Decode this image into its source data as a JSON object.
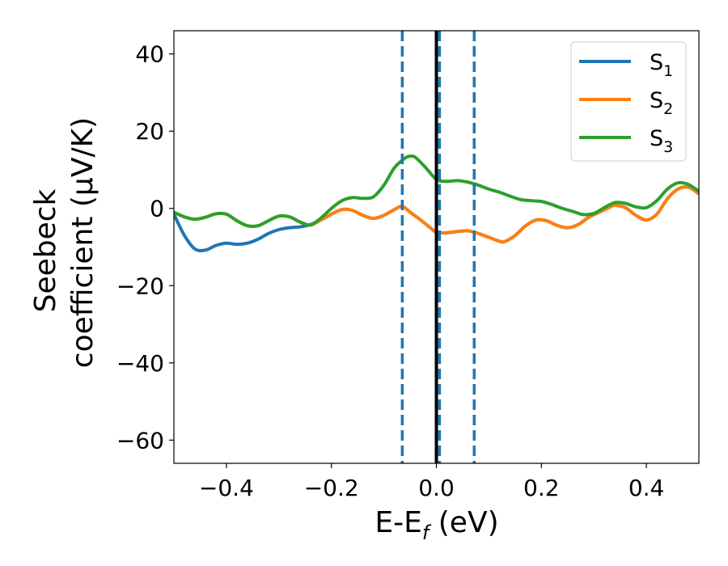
{
  "chart_data": {
    "type": "line",
    "xlabel": "E-E",
    "xlabel_sub": "f",
    "xlabel_unit": " (eV)",
    "ylabel_line1": "Seebeck",
    "ylabel_line2": "coefficient  (μV/K)",
    "xlim": [
      -0.5,
      0.5
    ],
    "ylim": [
      -66,
      46
    ],
    "xticks": [
      -0.4,
      -0.2,
      0.0,
      0.2,
      0.4
    ],
    "xtick_labels": [
      "−0.4",
      "−0.2",
      "0.0",
      "0.2",
      "0.4"
    ],
    "yticks": [
      40,
      20,
      0,
      -20,
      -40,
      -60
    ],
    "ytick_labels": [
      "40",
      "20",
      "0",
      "−20",
      "−40",
      "−60"
    ],
    "legend_position": "top-right",
    "grid": false,
    "series": [
      {
        "name": "S",
        "name_sub": "1",
        "color": "#1f77b4",
        "points": [
          [
            -0.5,
            -1.5
          ],
          [
            -0.48,
            -7
          ],
          [
            -0.46,
            -10.5
          ],
          [
            -0.44,
            -10.8
          ],
          [
            -0.42,
            -9.6
          ],
          [
            -0.4,
            -9.0
          ],
          [
            -0.38,
            -9.3
          ],
          [
            -0.36,
            -9.0
          ],
          [
            -0.34,
            -8.0
          ],
          [
            -0.32,
            -6.5
          ],
          [
            -0.3,
            -5.5
          ],
          [
            -0.28,
            -5.0
          ],
          [
            -0.26,
            -4.8
          ],
          [
            -0.24,
            -4.2
          ],
          [
            -0.22,
            -3.0
          ],
          [
            -0.2,
            -1.5
          ],
          [
            -0.18,
            -0.3
          ],
          [
            -0.16,
            -0.5
          ],
          [
            -0.14,
            -1.8
          ],
          [
            -0.12,
            -2.6
          ],
          [
            -0.1,
            -1.8
          ],
          [
            -0.08,
            -0.3
          ],
          [
            -0.065,
            0.5
          ],
          [
            -0.05,
            -1.0
          ],
          [
            -0.03,
            -3.0
          ],
          [
            -0.01,
            -5.2
          ],
          [
            0.0,
            -6.2
          ],
          [
            0.02,
            -6.3
          ],
          [
            0.04,
            -6.0
          ],
          [
            0.06,
            -5.8
          ],
          [
            0.08,
            -6.5
          ],
          [
            0.1,
            -7.5
          ],
          [
            0.12,
            -8.5
          ],
          [
            0.13,
            -8.6
          ],
          [
            0.15,
            -7.0
          ],
          [
            0.17,
            -4.5
          ],
          [
            0.19,
            -3.0
          ],
          [
            0.21,
            -3.2
          ],
          [
            0.23,
            -4.4
          ],
          [
            0.25,
            -5.0
          ],
          [
            0.27,
            -4.2
          ],
          [
            0.29,
            -2.3
          ],
          [
            0.31,
            -1.0
          ],
          [
            0.33,
            0.3
          ],
          [
            0.34,
            0.8
          ],
          [
            0.36,
            0.2
          ],
          [
            0.38,
            -1.8
          ],
          [
            0.4,
            -3.0
          ],
          [
            0.42,
            -1.5
          ],
          [
            0.44,
            2.5
          ],
          [
            0.46,
            5.0
          ],
          [
            0.48,
            5.5
          ],
          [
            0.5,
            3.8
          ]
        ]
      },
      {
        "name": "S",
        "name_sub": "2",
        "color": "#ff7f0e",
        "points": [
          [
            -0.5,
            -1.0
          ],
          [
            -0.48,
            -2.2
          ],
          [
            -0.46,
            -2.8
          ],
          [
            -0.44,
            -2.3
          ],
          [
            -0.42,
            -1.4
          ],
          [
            -0.4,
            -1.5
          ],
          [
            -0.38,
            -3.2
          ],
          [
            -0.36,
            -4.5
          ],
          [
            -0.34,
            -4.5
          ],
          [
            -0.32,
            -3.2
          ],
          [
            -0.3,
            -2.0
          ],
          [
            -0.28,
            -2.2
          ],
          [
            -0.26,
            -3.5
          ],
          [
            -0.24,
            -4.3
          ],
          [
            -0.22,
            -3.0
          ],
          [
            -0.2,
            -1.5
          ],
          [
            -0.18,
            -0.3
          ],
          [
            -0.16,
            -0.5
          ],
          [
            -0.14,
            -1.8
          ],
          [
            -0.12,
            -2.6
          ],
          [
            -0.1,
            -1.8
          ],
          [
            -0.08,
            -0.3
          ],
          [
            -0.065,
            0.5
          ],
          [
            -0.05,
            -1.0
          ],
          [
            -0.03,
            -3.0
          ],
          [
            -0.01,
            -5.2
          ],
          [
            0.0,
            -6.2
          ],
          [
            0.02,
            -6.3
          ],
          [
            0.04,
            -6.0
          ],
          [
            0.06,
            -5.8
          ],
          [
            0.08,
            -6.5
          ],
          [
            0.1,
            -7.5
          ],
          [
            0.12,
            -8.5
          ],
          [
            0.13,
            -8.6
          ],
          [
            0.15,
            -7.0
          ],
          [
            0.17,
            -4.5
          ],
          [
            0.19,
            -3.0
          ],
          [
            0.21,
            -3.2
          ],
          [
            0.23,
            -4.4
          ],
          [
            0.25,
            -5.0
          ],
          [
            0.27,
            -4.2
          ],
          [
            0.29,
            -2.3
          ],
          [
            0.31,
            -1.0
          ],
          [
            0.33,
            0.3
          ],
          [
            0.34,
            0.8
          ],
          [
            0.36,
            0.2
          ],
          [
            0.38,
            -1.8
          ],
          [
            0.4,
            -3.0
          ],
          [
            0.42,
            -1.5
          ],
          [
            0.44,
            2.5
          ],
          [
            0.46,
            5.0
          ],
          [
            0.48,
            5.5
          ],
          [
            0.5,
            3.8
          ]
        ]
      },
      {
        "name": "S",
        "name_sub": "3",
        "color": "#2ca02c",
        "points": [
          [
            -0.5,
            -1.0
          ],
          [
            -0.48,
            -2.2
          ],
          [
            -0.46,
            -2.8
          ],
          [
            -0.44,
            -2.3
          ],
          [
            -0.42,
            -1.4
          ],
          [
            -0.4,
            -1.5
          ],
          [
            -0.38,
            -3.2
          ],
          [
            -0.36,
            -4.5
          ],
          [
            -0.34,
            -4.5
          ],
          [
            -0.32,
            -3.2
          ],
          [
            -0.3,
            -2.0
          ],
          [
            -0.28,
            -2.2
          ],
          [
            -0.26,
            -3.5
          ],
          [
            -0.24,
            -4.3
          ],
          [
            -0.22,
            -2.5
          ],
          [
            -0.2,
            0.0
          ],
          [
            -0.18,
            2.0
          ],
          [
            -0.16,
            2.8
          ],
          [
            -0.14,
            2.6
          ],
          [
            -0.12,
            3.0
          ],
          [
            -0.1,
            6.0
          ],
          [
            -0.08,
            10.5
          ],
          [
            -0.06,
            13.0
          ],
          [
            -0.05,
            13.5
          ],
          [
            -0.04,
            13.2
          ],
          [
            -0.02,
            10.5
          ],
          [
            0.0,
            7.5
          ],
          [
            0.02,
            7.0
          ],
          [
            0.04,
            7.2
          ],
          [
            0.06,
            6.8
          ],
          [
            0.08,
            6.0
          ],
          [
            0.1,
            5.0
          ],
          [
            0.12,
            4.2
          ],
          [
            0.14,
            3.2
          ],
          [
            0.16,
            2.3
          ],
          [
            0.18,
            2.0
          ],
          [
            0.2,
            1.8
          ],
          [
            0.22,
            1.0
          ],
          [
            0.24,
            0.0
          ],
          [
            0.26,
            -0.8
          ],
          [
            0.28,
            -1.6
          ],
          [
            0.3,
            -1.3
          ],
          [
            0.32,
            0.2
          ],
          [
            0.34,
            1.5
          ],
          [
            0.36,
            1.3
          ],
          [
            0.38,
            0.4
          ],
          [
            0.4,
            0.2
          ],
          [
            0.42,
            2.0
          ],
          [
            0.44,
            5.0
          ],
          [
            0.46,
            6.6
          ],
          [
            0.48,
            6.2
          ],
          [
            0.5,
            4.4
          ]
        ]
      }
    ],
    "vertical_lines": [
      {
        "x": -0.065,
        "style": "dashed",
        "color": "#1f77b4"
      },
      {
        "x": 0.006,
        "style": "dashed",
        "color": "#1f77b4"
      },
      {
        "x": 0.072,
        "style": "dashed",
        "color": "#1f77b4"
      },
      {
        "x": 0.0,
        "style": "solid",
        "color": "#000000"
      }
    ]
  }
}
